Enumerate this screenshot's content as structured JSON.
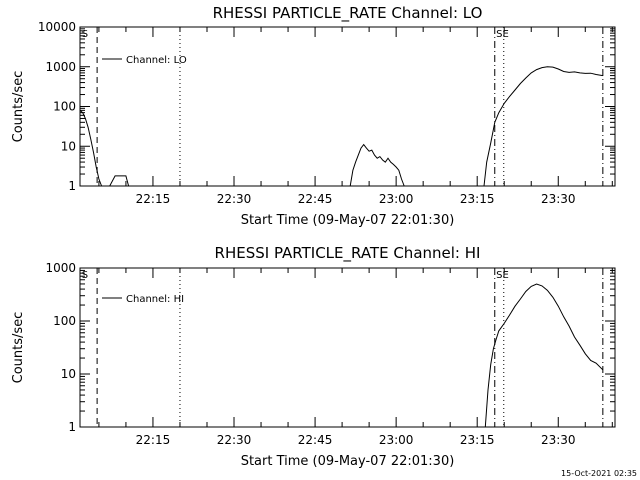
{
  "footer": "15-Oct-2021 02:35",
  "chart_data": [
    {
      "type": "line",
      "title": "RHESSI PARTICLE_RATE Channel: LO",
      "xlabel": "Start Time (09-May-07 22:01:30)",
      "ylabel": "Counts/sec",
      "yscale": "log",
      "ylim": [
        1,
        10000
      ],
      "xlim": [
        "22:01:30",
        "23:40:30"
      ],
      "x_ticks": [
        "22:15",
        "22:30",
        "22:45",
        "23:00",
        "23:15",
        "23:30"
      ],
      "y_ticks": [
        "1",
        "10",
        "100",
        "1000",
        "10000"
      ],
      "legend": {
        "entries": [
          "Channel: LO"
        ],
        "position": "top-left"
      },
      "vlines": [
        {
          "time": "22:04:40",
          "style": "dashed"
        },
        {
          "time": "22:20:00",
          "style": "dotted"
        },
        {
          "time": "23:18:15",
          "style": "dashdot"
        },
        {
          "time": "23:19:55",
          "style": "dotted"
        },
        {
          "time": "23:38:15",
          "style": "dashdot"
        }
      ],
      "markers": [
        {
          "label": "S",
          "time": "22:01:50"
        },
        {
          "label": "SE",
          "time": "23:18:30"
        }
      ],
      "series": [
        {
          "x": [
            "22:01:30",
            "22:02:00",
            "22:02:30",
            "22:03:00",
            "22:03:30",
            "22:04:00",
            "22:04:30",
            "22:05:00",
            "22:05:30",
            "22:06:00",
            "22:06:30",
            "22:07:00",
            "22:08:00",
            "22:08:30",
            "22:09:00",
            "22:09:30",
            "22:10:00",
            "22:10:30",
            "22:11:00",
            "22:12:00"
          ],
          "y": [
            80,
            70,
            50,
            30,
            15,
            7,
            3,
            1.5,
            1,
            1,
            1,
            1,
            1.8,
            1.8,
            1.8,
            1.8,
            1.8,
            1,
            1,
            1
          ]
        },
        {
          "x": [
            "22:51:30",
            "22:52:00",
            "22:52:30",
            "22:53:00",
            "22:53:30",
            "22:54:00",
            "22:54:30",
            "22:55:00",
            "22:55:30",
            "22:56:00",
            "22:56:30",
            "22:57:00",
            "22:57:30",
            "22:58:00",
            "22:58:30",
            "22:59:00",
            "22:59:30",
            "23:00:00",
            "23:00:30",
            "23:01:00",
            "23:01:30"
          ],
          "y": [
            1,
            2.5,
            4,
            6,
            9,
            11,
            9,
            7.5,
            8,
            6,
            5,
            5.5,
            4.5,
            4,
            5,
            4,
            3.5,
            3,
            2.5,
            1.5,
            1
          ]
        },
        {
          "x": [
            "23:16:15",
            "23:16:45",
            "23:17:30",
            "23:18:15",
            "23:19:00",
            "23:20:00",
            "23:21:00",
            "23:22:00",
            "23:23:00",
            "23:24:00",
            "23:25:00",
            "23:26:00",
            "23:27:00",
            "23:28:00",
            "23:29:00",
            "23:30:00",
            "23:31:00",
            "23:32:00",
            "23:33:00",
            "23:34:00",
            "23:35:00",
            "23:36:00",
            "23:37:00",
            "23:38:15"
          ],
          "y": [
            1,
            4,
            12,
            40,
            70,
            120,
            180,
            260,
            380,
            520,
            700,
            850,
            950,
            1000,
            980,
            880,
            760,
            720,
            740,
            700,
            680,
            690,
            640,
            600
          ]
        }
      ]
    },
    {
      "type": "line",
      "title": "RHESSI PARTICLE_RATE Channel: HI",
      "xlabel": "Start Time (09-May-07 22:01:30)",
      "ylabel": "Counts/sec",
      "yscale": "log",
      "ylim": [
        1,
        1000
      ],
      "xlim": [
        "22:01:30",
        "23:40:30"
      ],
      "x_ticks": [
        "22:15",
        "22:30",
        "22:45",
        "23:00",
        "23:15",
        "23:30"
      ],
      "y_ticks": [
        "1",
        "10",
        "100",
        "1000"
      ],
      "legend": {
        "entries": [
          "Channel: HI"
        ],
        "position": "top-left"
      },
      "vlines": [
        {
          "time": "22:04:40",
          "style": "dashed"
        },
        {
          "time": "22:20:00",
          "style": "dotted"
        },
        {
          "time": "23:18:15",
          "style": "dashdot"
        },
        {
          "time": "23:19:55",
          "style": "dotted"
        },
        {
          "time": "23:38:15",
          "style": "dashdot"
        }
      ],
      "markers": [
        {
          "label": "S",
          "time": "22:01:50"
        },
        {
          "label": "SE",
          "time": "23:18:30"
        }
      ],
      "series": [
        {
          "x": [
            "23:16:30",
            "23:17:00",
            "23:17:30",
            "23:18:00",
            "23:18:30",
            "23:19:00",
            "23:20:00",
            "23:21:00",
            "23:22:00",
            "23:23:00",
            "23:24:00",
            "23:25:00",
            "23:26:00",
            "23:27:00",
            "23:28:00",
            "23:29:00",
            "23:30:00",
            "23:31:00",
            "23:32:00",
            "23:33:00",
            "23:34:00",
            "23:35:00",
            "23:36:00",
            "23:37:00",
            "23:38:15"
          ],
          "y": [
            1,
            5,
            15,
            30,
            45,
            65,
            90,
            130,
            190,
            260,
            360,
            450,
            500,
            460,
            380,
            280,
            190,
            120,
            80,
            50,
            35,
            24,
            18,
            16,
            12
          ]
        }
      ]
    }
  ]
}
